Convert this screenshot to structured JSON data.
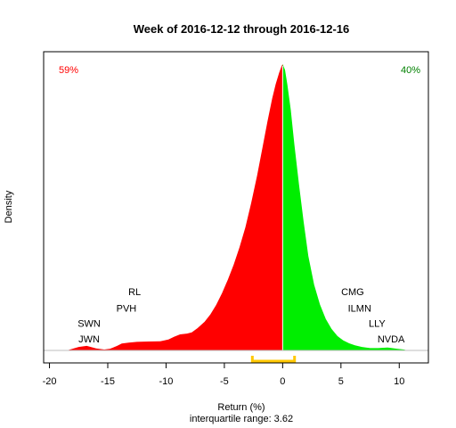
{
  "chart_data": {
    "type": "area",
    "title": "Week of 2016-12-12 through 2016-12-16",
    "xlabel": "Return (%)",
    "ylabel": "Density",
    "subtitle": "interquartile range: 3.62",
    "xlim": [
      -20.5,
      12.5
    ],
    "ylim": [
      0,
      1
    ],
    "xticks": [
      "-20",
      "-15",
      "-10",
      "-5",
      "0",
      "5",
      "10"
    ],
    "xtick_values": [
      -20,
      -15,
      -10,
      -5,
      0,
      5,
      10
    ],
    "split_at": 0,
    "negative_color": "#ff0000",
    "positive_color": "#00ee00",
    "baseline_color": "#bebebe",
    "pct_negative": "59%",
    "pct_positive": "40%",
    "iqr": {
      "from": -2.6,
      "to": 1.02,
      "color": "#ffc800"
    },
    "density": {
      "x": [
        -18.5,
        -17.5,
        -16.8,
        -16,
        -15.3,
        -14.8,
        -14.2,
        -13.8,
        -13.2,
        -12.5,
        -11.5,
        -10.5,
        -9.8,
        -9.3,
        -8.8,
        -8.2,
        -7.8,
        -7.3,
        -6.7,
        -6.2,
        -5.7,
        -5.2,
        -4.7,
        -4.2,
        -3.7,
        -3.2,
        -2.7,
        -2.2,
        -1.7,
        -1.3,
        -0.9,
        -0.6,
        -0.3,
        -0.1,
        0,
        0.2,
        0.4,
        0.7,
        1.0,
        1.4,
        1.8,
        2.2,
        2.7,
        3.2,
        3.7,
        4.2,
        4.7,
        5.2,
        5.7,
        6.2,
        6.8,
        7.5,
        8.2,
        9.0,
        9.8,
        10.4,
        10.7
      ],
      "y": [
        0.0,
        0.012,
        0.016,
        0.007,
        0.003,
        0.006,
        0.016,
        0.024,
        0.027,
        0.03,
        0.031,
        0.032,
        0.038,
        0.048,
        0.056,
        0.059,
        0.063,
        0.078,
        0.1,
        0.126,
        0.159,
        0.2,
        0.247,
        0.3,
        0.36,
        0.43,
        0.515,
        0.61,
        0.715,
        0.8,
        0.88,
        0.93,
        0.97,
        0.993,
        1.0,
        0.98,
        0.93,
        0.84,
        0.72,
        0.58,
        0.45,
        0.33,
        0.23,
        0.16,
        0.11,
        0.075,
        0.05,
        0.035,
        0.025,
        0.018,
        0.012,
        0.008,
        0.008,
        0.01,
        0.006,
        0.003,
        0.0
      ]
    },
    "annotations": [
      {
        "text": "RL",
        "x": -12.7,
        "y": 0.205
      },
      {
        "text": "PVH",
        "x": -13.4,
        "y": 0.148
      },
      {
        "text": "SWN",
        "x": -16.6,
        "y": 0.095
      },
      {
        "text": "JWN",
        "x": -16.6,
        "y": 0.04
      },
      {
        "text": "CMG",
        "x": 6.0,
        "y": 0.205
      },
      {
        "text": "ILMN",
        "x": 6.6,
        "y": 0.148
      },
      {
        "text": "LLY",
        "x": 8.1,
        "y": 0.095
      },
      {
        "text": "NVDA",
        "x": 9.3,
        "y": 0.04
      }
    ]
  }
}
